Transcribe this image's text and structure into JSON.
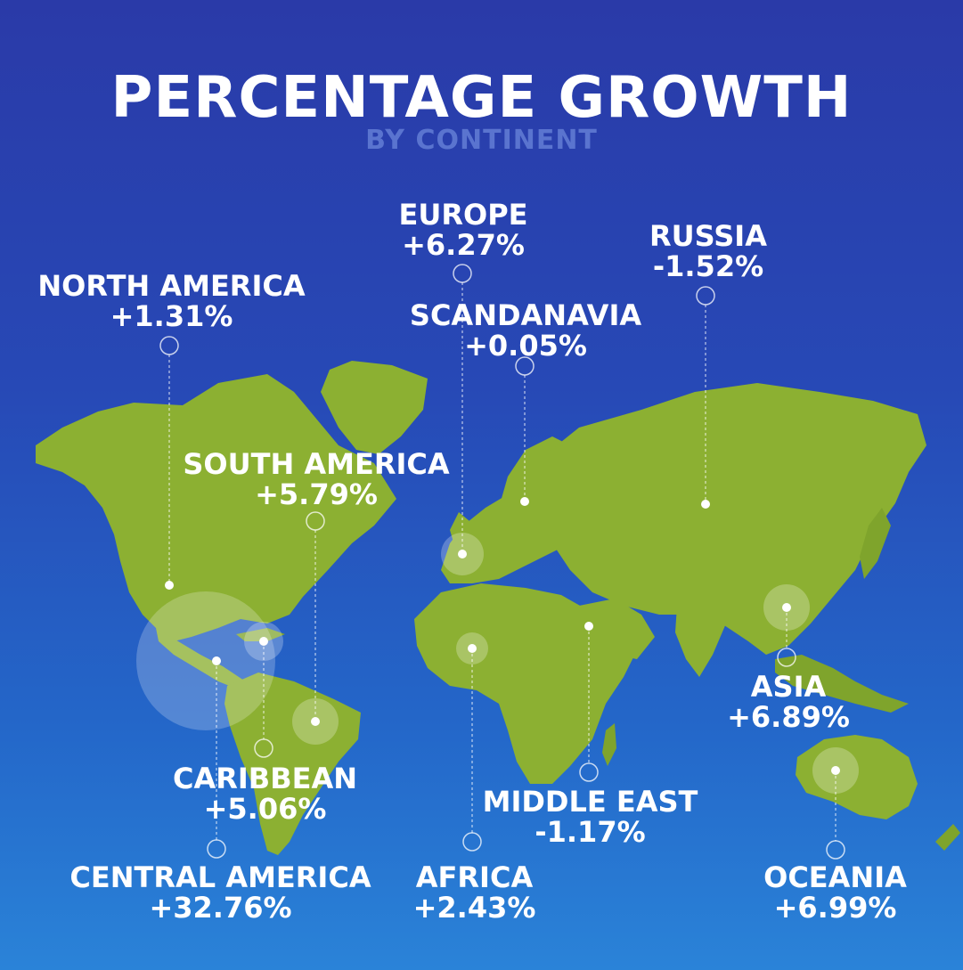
{
  "header": {
    "title": "PERCENTAGE GROWTH",
    "subtitle": "BY CONTINENT"
  },
  "colors": {
    "background_top": "#2a3aa8",
    "background_bottom": "#2a83d8",
    "land": "#8cb032",
    "text": "#ffffff",
    "subtitle": "#5a74cf"
  },
  "regions": [
    {
      "id": "north-america",
      "name": "NORTH AMERICA",
      "growth": "+1.31%",
      "value": 1.31
    },
    {
      "id": "europe",
      "name": "EUROPE",
      "growth": "+6.27%",
      "value": 6.27
    },
    {
      "id": "russia",
      "name": "RUSSIA",
      "growth": "-1.52%",
      "value": -1.52
    },
    {
      "id": "scandanavia",
      "name": "SCANDANAVIA",
      "growth": "+0.05%",
      "value": 0.05
    },
    {
      "id": "south-america",
      "name": "SOUTH AMERICA",
      "growth": "+5.79%",
      "value": 5.79
    },
    {
      "id": "asia",
      "name": "ASIA",
      "growth": "+6.89%",
      "value": 6.89
    },
    {
      "id": "caribbean",
      "name": "CARIBBEAN",
      "growth": "+5.06%",
      "value": 5.06
    },
    {
      "id": "middle-east",
      "name": "MIDDLE EAST",
      "growth": "-1.17%",
      "value": -1.17
    },
    {
      "id": "central-america",
      "name": "CENTRAL AMERICA",
      "growth": "+32.76%",
      "value": 32.76
    },
    {
      "id": "africa",
      "name": "AFRICA",
      "growth": "+2.43%",
      "value": 2.43
    },
    {
      "id": "oceania",
      "name": "OCEANIA",
      "growth": "+6.99%",
      "value": 6.99
    }
  ]
}
